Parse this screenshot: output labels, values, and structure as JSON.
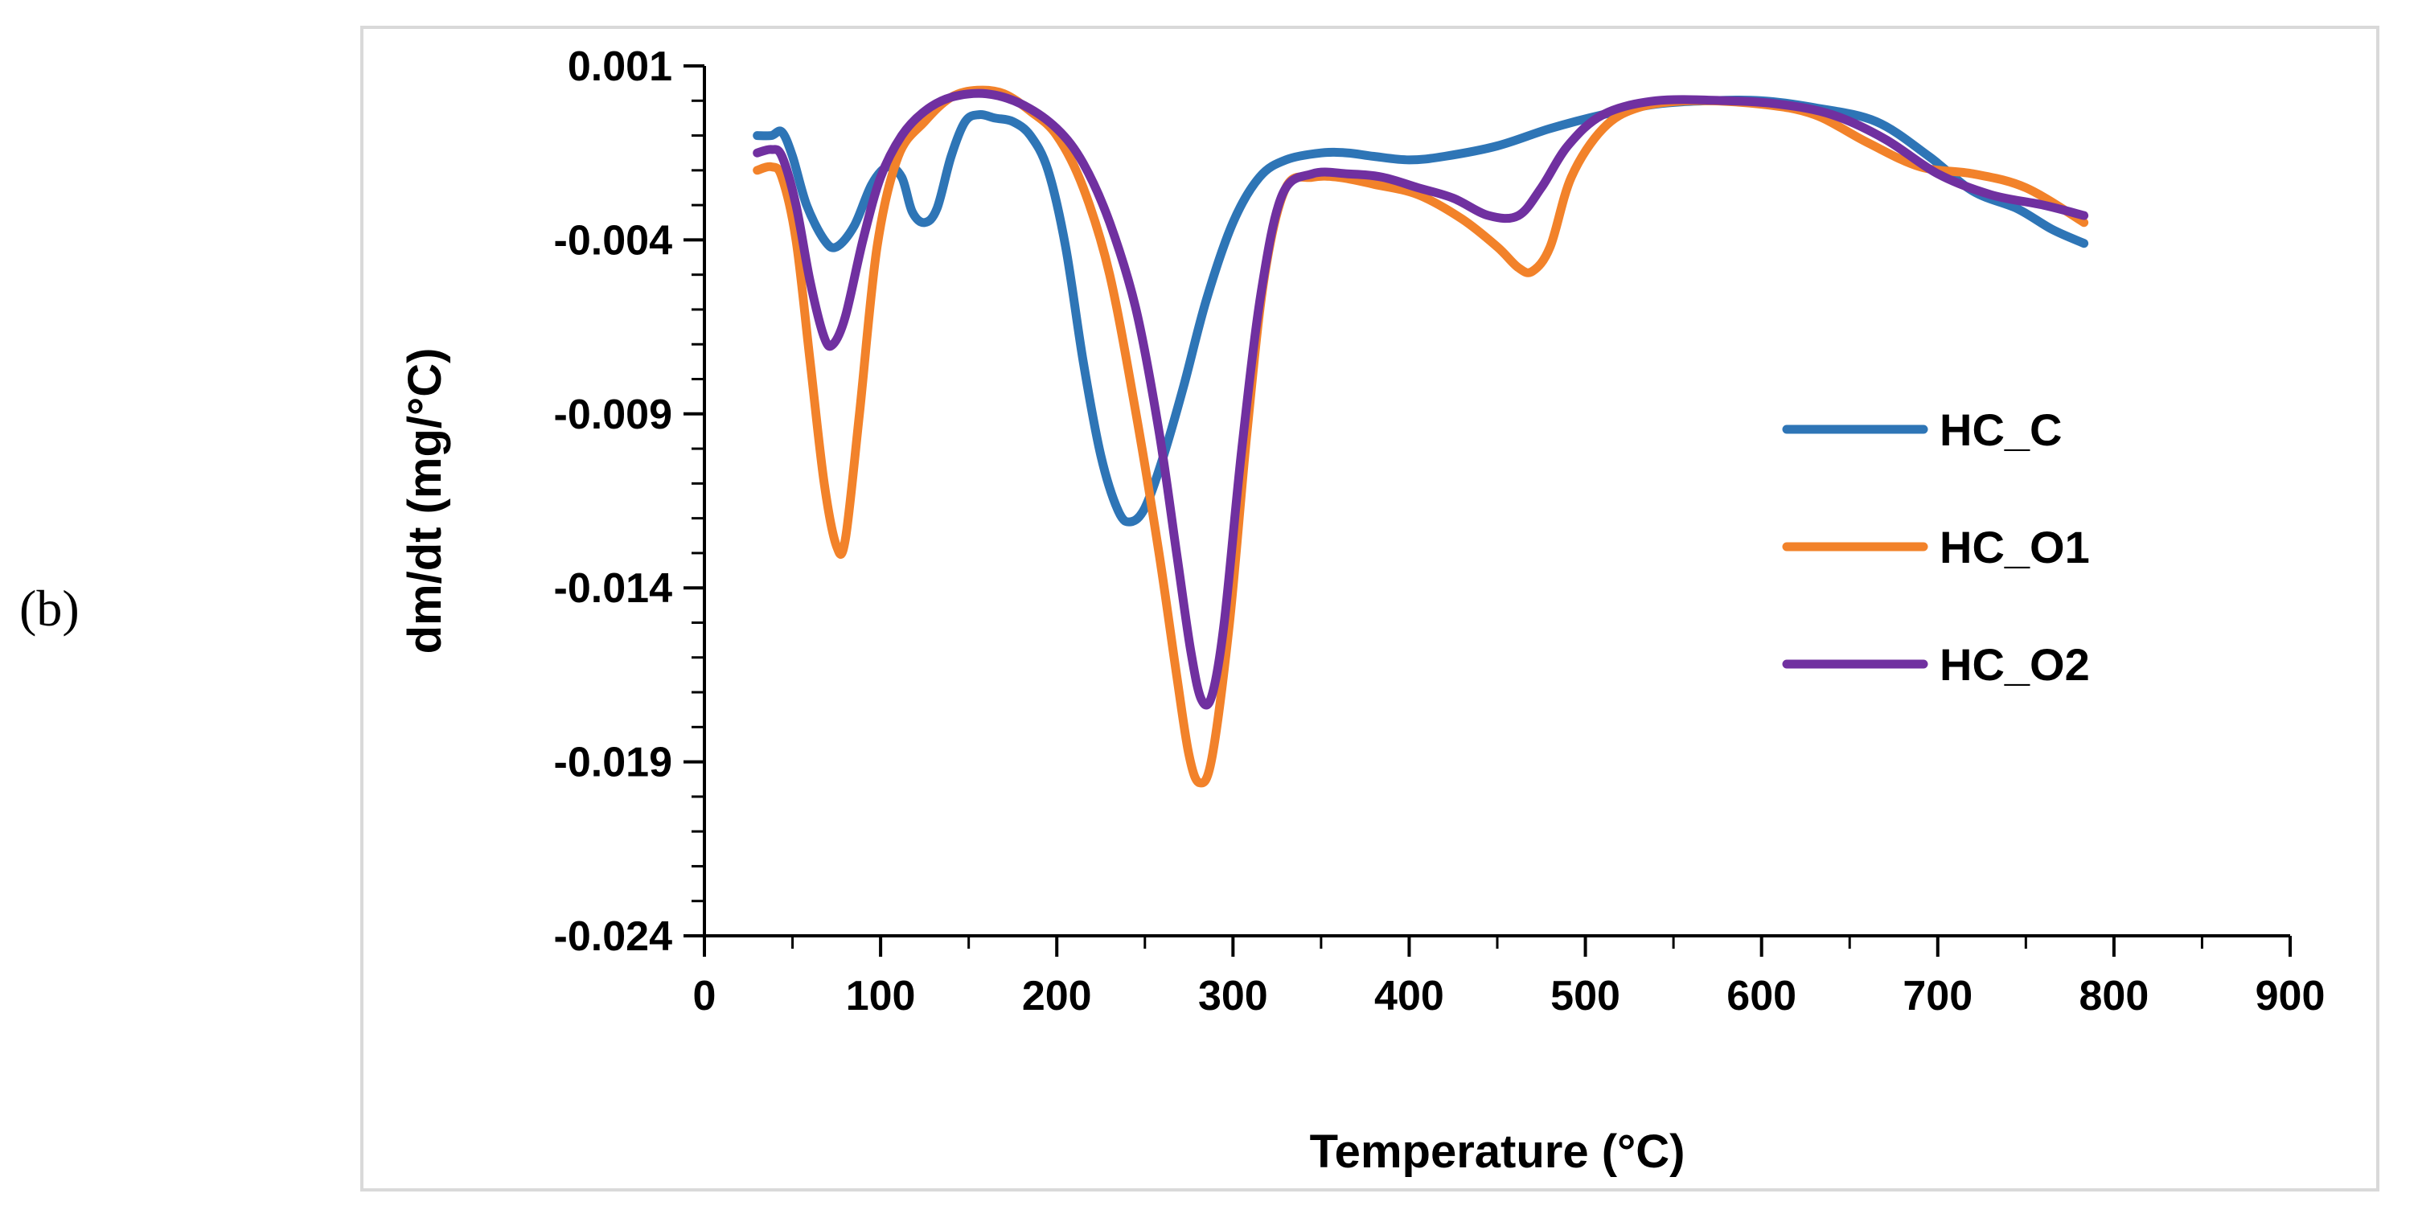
{
  "panel_label": "(b)",
  "chart_data": {
    "type": "line",
    "title": "",
    "xlabel": "Temperature (°C)",
    "ylabel": "dm/dt (mg/°C)",
    "xlim": [
      0,
      900
    ],
    "ylim": [
      -0.024,
      0.001
    ],
    "x_ticks": [
      0,
      100,
      200,
      300,
      400,
      500,
      600,
      700,
      800,
      900
    ],
    "x_tick_labels": [
      "0",
      "100",
      "200",
      "300",
      "400",
      "500",
      "600",
      "700",
      "800",
      "900"
    ],
    "y_ticks": [
      0.001,
      -0.004,
      -0.009,
      -0.014,
      -0.019,
      -0.024
    ],
    "y_tick_labels": [
      "0.001",
      "-0.004",
      "-0.009",
      "-0.014",
      "-0.019",
      "-0.024"
    ],
    "grid": false,
    "legend_position": "right",
    "series": [
      {
        "name": "HC_C",
        "color": "#2e75b6",
        "points": [
          [
            30,
            -0.001
          ],
          [
            38,
            -0.001
          ],
          [
            44,
            -0.0009
          ],
          [
            50,
            -0.0016
          ],
          [
            58,
            -0.003
          ],
          [
            68,
            -0.004
          ],
          [
            75,
            -0.0042
          ],
          [
            85,
            -0.0036
          ],
          [
            95,
            -0.0024
          ],
          [
            104,
            -0.0019
          ],
          [
            112,
            -0.0022
          ],
          [
            118,
            -0.0032
          ],
          [
            125,
            -0.0035
          ],
          [
            132,
            -0.0031
          ],
          [
            140,
            -0.0016
          ],
          [
            148,
            -0.0006
          ],
          [
            156,
            -0.0004
          ],
          [
            165,
            -0.0005
          ],
          [
            175,
            -0.0006
          ],
          [
            185,
            -0.001
          ],
          [
            195,
            -0.002
          ],
          [
            205,
            -0.0042
          ],
          [
            215,
            -0.0075
          ],
          [
            225,
            -0.0102
          ],
          [
            235,
            -0.0118
          ],
          [
            242,
            -0.0121
          ],
          [
            250,
            -0.0117
          ],
          [
            260,
            -0.0103
          ],
          [
            272,
            -0.0082
          ],
          [
            285,
            -0.0057
          ],
          [
            300,
            -0.0035
          ],
          [
            315,
            -0.0022
          ],
          [
            330,
            -0.0017
          ],
          [
            350,
            -0.0015
          ],
          [
            365,
            -0.0015
          ],
          [
            380,
            -0.0016
          ],
          [
            400,
            -0.0017
          ],
          [
            420,
            -0.0016
          ],
          [
            450,
            -0.0013
          ],
          [
            480,
            -0.0008
          ],
          [
            510,
            -0.0004
          ],
          [
            540,
            -0.0001
          ],
          [
            570,
            0.0
          ],
          [
            600,
            0.0
          ],
          [
            630,
            -0.0002
          ],
          [
            665,
            -0.0006
          ],
          [
            695,
            -0.0016
          ],
          [
            720,
            -0.0026
          ],
          [
            745,
            -0.0031
          ],
          [
            765,
            -0.0037
          ],
          [
            783,
            -0.0041
          ]
        ]
      },
      {
        "name": "HC_O1",
        "color": "#f2822a",
        "points": [
          [
            30,
            -0.002
          ],
          [
            38,
            -0.0019
          ],
          [
            44,
            -0.0022
          ],
          [
            52,
            -0.004
          ],
          [
            60,
            -0.0075
          ],
          [
            68,
            -0.011
          ],
          [
            75,
            -0.0128
          ],
          [
            80,
            -0.0126
          ],
          [
            88,
            -0.009
          ],
          [
            98,
            -0.0042
          ],
          [
            110,
            -0.0016
          ],
          [
            125,
            -0.0006
          ],
          [
            140,
            0.0001
          ],
          [
            155,
            0.0003
          ],
          [
            170,
            0.0002
          ],
          [
            185,
            -0.0003
          ],
          [
            200,
            -0.001
          ],
          [
            215,
            -0.0025
          ],
          [
            230,
            -0.005
          ],
          [
            245,
            -0.009
          ],
          [
            258,
            -0.013
          ],
          [
            268,
            -0.0165
          ],
          [
            275,
            -0.0188
          ],
          [
            281,
            -0.0196
          ],
          [
            288,
            -0.0189
          ],
          [
            298,
            -0.015
          ],
          [
            308,
            -0.0095
          ],
          [
            318,
            -0.005
          ],
          [
            330,
            -0.0025
          ],
          [
            345,
            -0.0022
          ],
          [
            360,
            -0.0022
          ],
          [
            380,
            -0.0024
          ],
          [
            405,
            -0.0027
          ],
          [
            430,
            -0.0034
          ],
          [
            450,
            -0.0042
          ],
          [
            462,
            -0.0048
          ],
          [
            470,
            -0.0049
          ],
          [
            480,
            -0.0042
          ],
          [
            492,
            -0.0022
          ],
          [
            510,
            -0.0008
          ],
          [
            530,
            -0.0002
          ],
          [
            560,
            0.0
          ],
          [
            600,
            -0.0001
          ],
          [
            630,
            -0.0004
          ],
          [
            660,
            -0.0012
          ],
          [
            690,
            -0.0019
          ],
          [
            720,
            -0.0021
          ],
          [
            750,
            -0.0025
          ],
          [
            783,
            -0.0035
          ]
        ]
      },
      {
        "name": "HC_O2",
        "color": "#7030a0",
        "points": [
          [
            30,
            -0.0015
          ],
          [
            38,
            -0.0014
          ],
          [
            44,
            -0.0016
          ],
          [
            52,
            -0.003
          ],
          [
            60,
            -0.0052
          ],
          [
            68,
            -0.0068
          ],
          [
            73,
            -0.007
          ],
          [
            80,
            -0.0062
          ],
          [
            90,
            -0.004
          ],
          [
            100,
            -0.0022
          ],
          [
            112,
            -0.001
          ],
          [
            125,
            -0.0003
          ],
          [
            140,
            0.0001
          ],
          [
            160,
            0.0002
          ],
          [
            180,
            -0.0001
          ],
          [
            200,
            -0.0008
          ],
          [
            215,
            -0.0018
          ],
          [
            230,
            -0.0035
          ],
          [
            245,
            -0.006
          ],
          [
            258,
            -0.0095
          ],
          [
            268,
            -0.013
          ],
          [
            276,
            -0.0158
          ],
          [
            282,
            -0.0172
          ],
          [
            288,
            -0.0171
          ],
          [
            295,
            -0.015
          ],
          [
            305,
            -0.01
          ],
          [
            316,
            -0.0055
          ],
          [
            328,
            -0.0027
          ],
          [
            345,
            -0.0021
          ],
          [
            365,
            -0.0021
          ],
          [
            385,
            -0.0022
          ],
          [
            405,
            -0.0025
          ],
          [
            425,
            -0.0028
          ],
          [
            445,
            -0.0033
          ],
          [
            462,
            -0.0033
          ],
          [
            475,
            -0.0025
          ],
          [
            490,
            -0.0013
          ],
          [
            510,
            -0.0004
          ],
          [
            540,
            0.0
          ],
          [
            580,
            0.0
          ],
          [
            610,
            -0.0001
          ],
          [
            640,
            -0.0004
          ],
          [
            670,
            -0.0011
          ],
          [
            700,
            -0.0021
          ],
          [
            730,
            -0.0027
          ],
          [
            760,
            -0.003
          ],
          [
            783,
            -0.0033
          ]
        ]
      }
    ]
  }
}
